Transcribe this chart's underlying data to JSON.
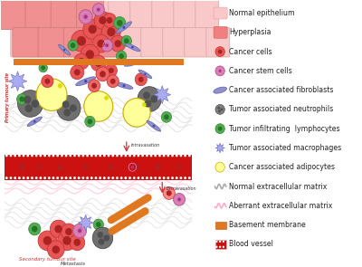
{
  "legend_items": [
    {
      "label": "Normal epithelium",
      "type": "rect",
      "color": "#f9c8c8",
      "edge": "#e8a0a0"
    },
    {
      "label": "Hyperplasia",
      "type": "rect",
      "color": "#f08080",
      "edge": "#d06060"
    },
    {
      "label": "Cancer cells",
      "type": "circle",
      "color": "#e85555",
      "edge": "#c03030",
      "inner": "#aa2222"
    },
    {
      "label": "Cancer stem cells",
      "type": "circle_stem",
      "color": "#d878b0",
      "edge": "#a85090"
    },
    {
      "label": "Cancer associated fibroblasts",
      "type": "spindle",
      "color": "#9090cc",
      "edge": "#6060aa"
    },
    {
      "label": "Tumor associated neutrophils",
      "type": "circle_multi",
      "color": "#808080",
      "edge": "#505050"
    },
    {
      "label": "Tumor infiltrating  lymphocytes",
      "type": "circle",
      "color": "#55aa55",
      "edge": "#338833",
      "inner": "#227722"
    },
    {
      "label": "Tumor associated macrophages",
      "type": "star",
      "color": "#aaaaee",
      "edge": "#7777cc"
    },
    {
      "label": "Cancer associated adipocytes",
      "type": "circle_hollow",
      "color": "#ffff99",
      "edge": "#ccaa00"
    },
    {
      "label": "Normal extracellular matrix",
      "type": "line_wavy",
      "color": "#aaaaaa",
      "edge": "#aaaaaa"
    },
    {
      "label": "Aberrant extracellular matrix",
      "type": "line_wavy",
      "color": "#ffaacc",
      "edge": "#ffaacc"
    },
    {
      "label": "Basement membrane",
      "type": "rect_orange",
      "color": "#e07820",
      "edge": "#c05010"
    },
    {
      "label": "Blood vessel",
      "type": "rect_dark",
      "color": "#cc1111",
      "edge": "#881111"
    }
  ],
  "bg_color": "#ffffff"
}
